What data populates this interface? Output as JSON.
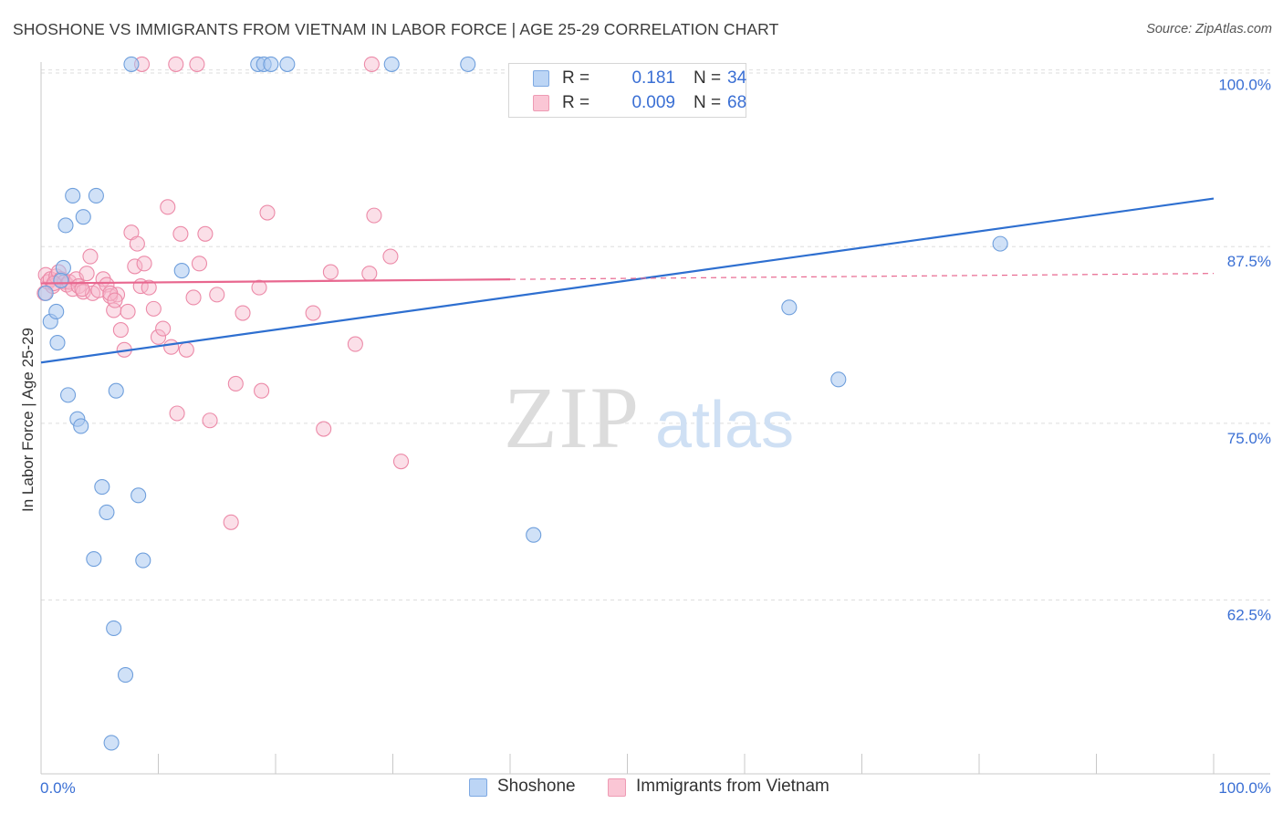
{
  "title": "SHOSHONE VS IMMIGRANTS FROM VIETNAM IN LABOR FORCE | AGE 25-29 CORRELATION CHART",
  "source": "Source: ZipAtlas.com",
  "watermark": {
    "zip": "ZIP",
    "atlas": "atlas"
  },
  "legend": {
    "shoshone": {
      "r_label": "R =",
      "r_value": "0.181",
      "n_label": "N =",
      "n_value": "34"
    },
    "vietnam": {
      "r_label": "R =",
      "r_value": "0.009",
      "n_label": "N =",
      "n_value": "68"
    }
  },
  "bottom_legend": {
    "shoshone": "Shoshone",
    "vietnam": "Immigrants from Vietnam"
  },
  "colors": {
    "shoshone_fill": "#a9c8f0",
    "shoshone_stroke": "#6f9fdc",
    "shoshone_line": "#2e6fd0",
    "vietnam_fill": "#f6b9cc",
    "vietnam_stroke": "#ec8aa8",
    "vietnam_line": "#e8678f",
    "tick_label": "#3a6fd4",
    "grid": "#dedede"
  },
  "chart_data": {
    "type": "scatter",
    "title": "SHOSHONE VS IMMIGRANTS FROM VIETNAM IN LABOR FORCE | AGE 25-29 CORRELATION CHART",
    "xlabel": "",
    "ylabel": "In Labor Force | Age 25-29",
    "xlim": [
      0,
      100
    ],
    "ylim": [
      50.2,
      101.2
    ],
    "x_tick_labels": [
      "0.0%",
      "100.0%"
    ],
    "y_ticks": [
      62.5,
      75.0,
      87.5,
      100.0
    ],
    "y_tick_labels": [
      "62.5%",
      "75.0%",
      "87.5%",
      "100.0%"
    ],
    "grid": true,
    "series": [
      {
        "name": "Shoshone",
        "r": 0.181,
        "n": 34,
        "points": [
          [
            0.4,
            84.2
          ],
          [
            0.8,
            82.2
          ],
          [
            1.3,
            82.9
          ],
          [
            1.4,
            80.7
          ],
          [
            1.9,
            86.0
          ],
          [
            1.7,
            85.1
          ],
          [
            2.1,
            89.0
          ],
          [
            2.3,
            77.0
          ],
          [
            2.7,
            91.1
          ],
          [
            3.1,
            75.3
          ],
          [
            3.4,
            74.8
          ],
          [
            3.6,
            89.6
          ],
          [
            4.7,
            91.1
          ],
          [
            5.2,
            70.5
          ],
          [
            5.6,
            68.7
          ],
          [
            4.5,
            65.4
          ],
          [
            6.4,
            77.3
          ],
          [
            6.2,
            60.5
          ],
          [
            7.2,
            57.2
          ],
          [
            6.0,
            52.4
          ],
          [
            8.3,
            69.9
          ],
          [
            8.7,
            65.3
          ],
          [
            7.7,
            100.4
          ],
          [
            12.0,
            85.8
          ],
          [
            18.5,
            100.4
          ],
          [
            19.0,
            100.4
          ],
          [
            19.6,
            100.4
          ],
          [
            21.0,
            100.4
          ],
          [
            29.9,
            100.4
          ],
          [
            36.4,
            100.4
          ],
          [
            42.0,
            67.1
          ],
          [
            63.8,
            83.2
          ],
          [
            68.0,
            78.1
          ],
          [
            81.8,
            87.7
          ]
        ],
        "trend": {
          "x": [
            0,
            100
          ],
          "y": [
            79.3,
            90.9
          ]
        }
      },
      {
        "name": "Immigrants from Vietnam",
        "r": 0.009,
        "n": 68,
        "points": [
          [
            0.3,
            84.2
          ],
          [
            0.4,
            85.5
          ],
          [
            0.6,
            85.0
          ],
          [
            0.8,
            85.2
          ],
          [
            1.0,
            84.7
          ],
          [
            1.3,
            85.4
          ],
          [
            1.5,
            85.7
          ],
          [
            1.7,
            85.2
          ],
          [
            2.0,
            85.0
          ],
          [
            2.2,
            84.8
          ],
          [
            2.4,
            85.0
          ],
          [
            2.7,
            84.5
          ],
          [
            3.0,
            85.2
          ],
          [
            3.2,
            84.7
          ],
          [
            3.6,
            84.3
          ],
          [
            3.9,
            85.6
          ],
          [
            4.2,
            86.8
          ],
          [
            4.4,
            84.2
          ],
          [
            4.9,
            84.4
          ],
          [
            5.3,
            85.2
          ],
          [
            5.6,
            84.8
          ],
          [
            5.9,
            84.0
          ],
          [
            6.2,
            83.0
          ],
          [
            6.5,
            84.1
          ],
          [
            6.8,
            81.6
          ],
          [
            7.1,
            80.2
          ],
          [
            7.4,
            82.9
          ],
          [
            7.7,
            88.5
          ],
          [
            8.0,
            86.1
          ],
          [
            8.2,
            87.7
          ],
          [
            8.5,
            84.7
          ],
          [
            8.8,
            86.3
          ],
          [
            9.2,
            84.6
          ],
          [
            9.6,
            83.1
          ],
          [
            10.0,
            81.1
          ],
          [
            10.4,
            81.7
          ],
          [
            10.8,
            90.3
          ],
          [
            11.1,
            80.4
          ],
          [
            11.6,
            75.7
          ],
          [
            11.9,
            88.4
          ],
          [
            12.4,
            80.2
          ],
          [
            13.0,
            83.9
          ],
          [
            13.5,
            86.3
          ],
          [
            14.0,
            88.4
          ],
          [
            14.4,
            75.2
          ],
          [
            15.0,
            84.1
          ],
          [
            16.2,
            68.0
          ],
          [
            16.6,
            77.8
          ],
          [
            17.2,
            82.8
          ],
          [
            18.6,
            84.6
          ],
          [
            18.8,
            77.3
          ],
          [
            19.3,
            89.9
          ],
          [
            23.2,
            82.8
          ],
          [
            24.1,
            74.6
          ],
          [
            24.7,
            85.7
          ],
          [
            26.8,
            80.6
          ],
          [
            28.0,
            85.6
          ],
          [
            28.4,
            89.7
          ],
          [
            29.8,
            86.8
          ],
          [
            30.7,
            72.3
          ],
          [
            8.6,
            100.4
          ],
          [
            11.5,
            100.4
          ],
          [
            13.3,
            100.4
          ],
          [
            28.2,
            100.4
          ],
          [
            5.9,
            84.2
          ],
          [
            3.5,
            84.5
          ],
          [
            6.3,
            83.7
          ],
          [
            1.1,
            84.9
          ]
        ],
        "trend": {
          "x": [
            0,
            100
          ],
          "y": [
            84.9,
            85.6
          ],
          "solid_until_x": 40
        }
      }
    ]
  }
}
